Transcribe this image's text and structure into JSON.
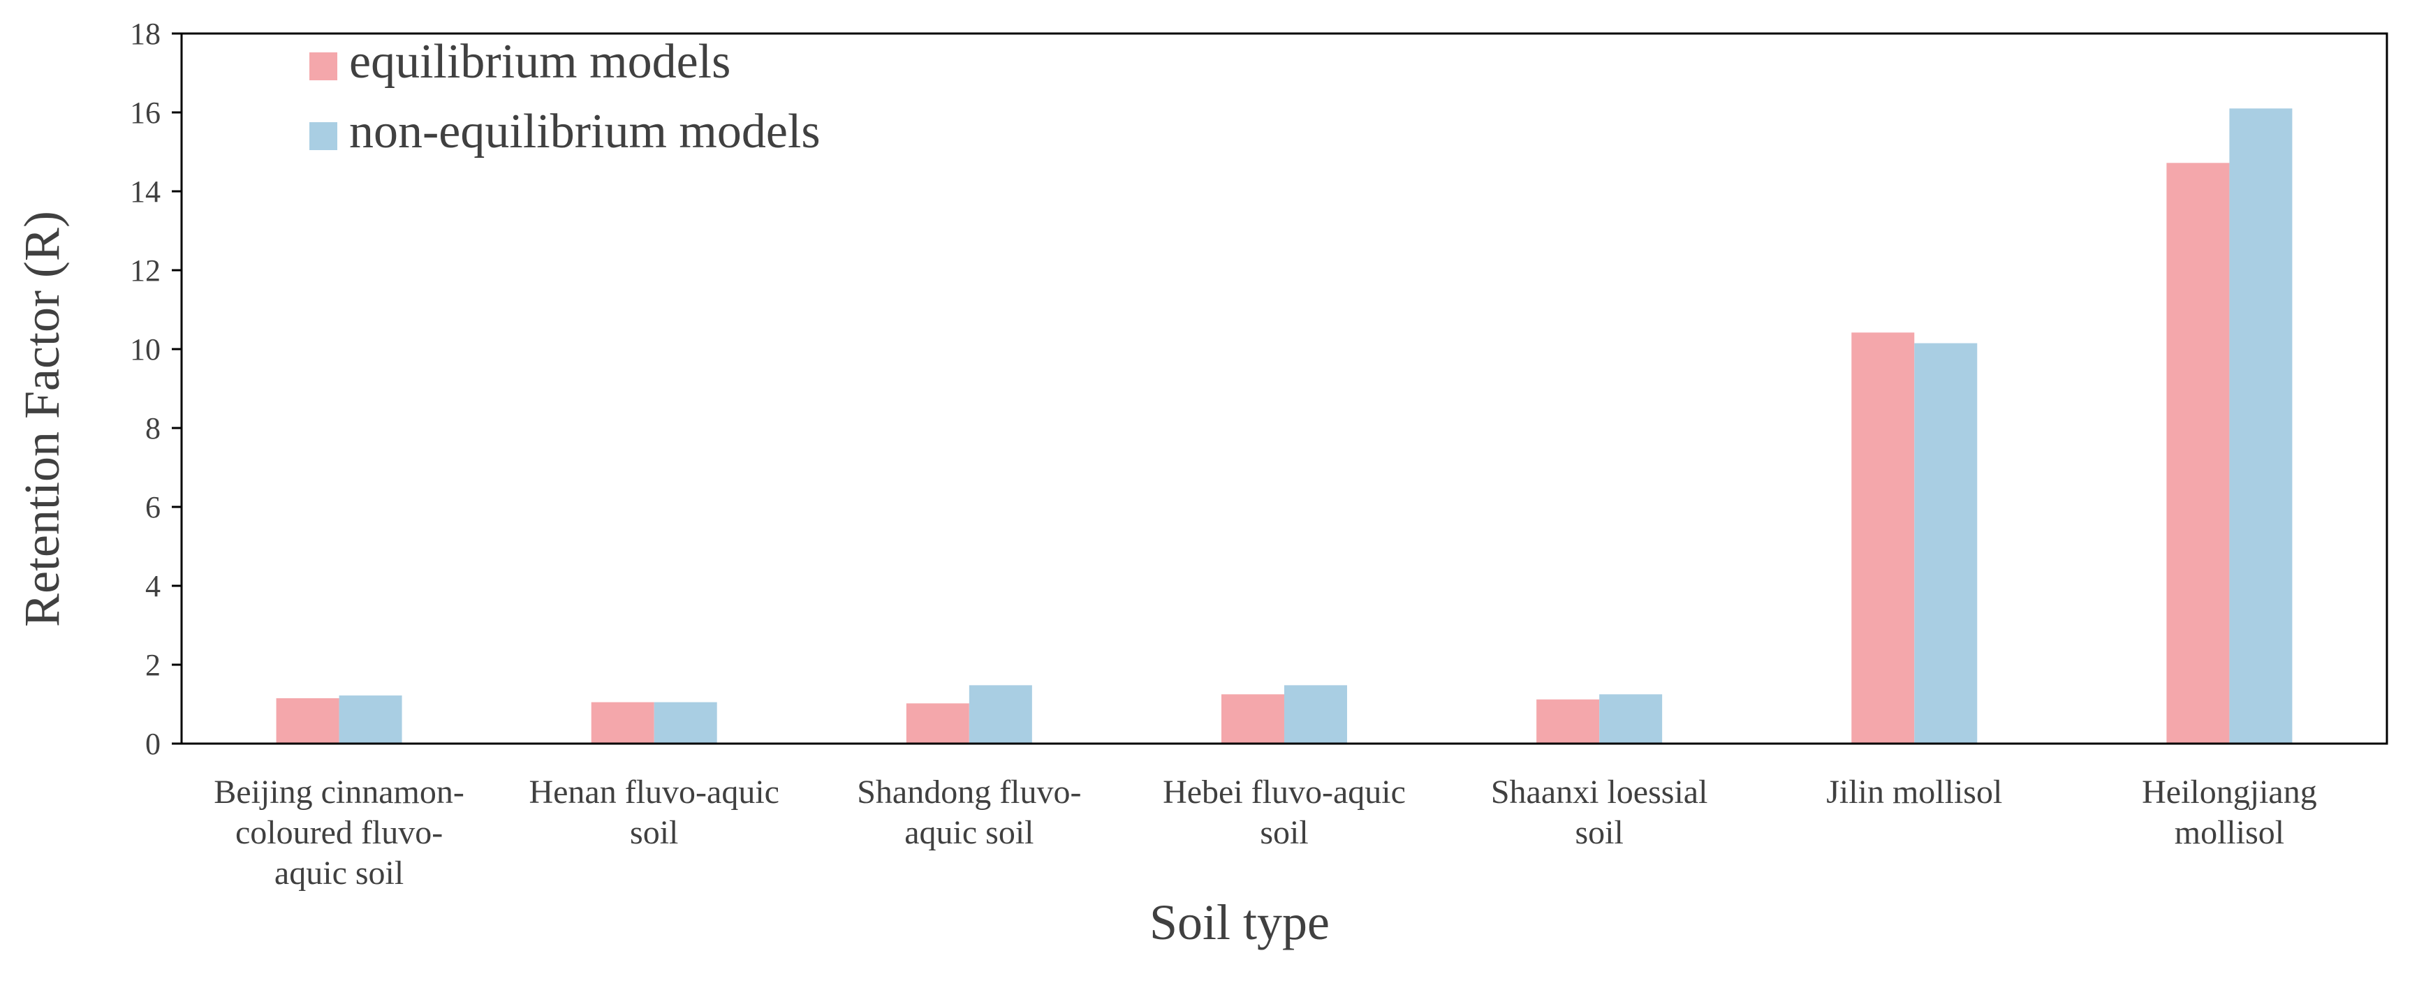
{
  "chart_data": {
    "type": "bar",
    "title": "",
    "xlabel": "Soil type",
    "ylabel": "Retention Factor (R)",
    "ylim": [
      0,
      18
    ],
    "yticks": [
      "0",
      "2",
      "4",
      "6",
      "8",
      "10",
      "12",
      "14",
      "16",
      "18"
    ],
    "grid": false,
    "legend_position": "top-left",
    "categories": [
      [
        "Beijing cinnamon-",
        "coloured fluvo-",
        "aquic soil"
      ],
      [
        "Henan fluvo-aquic",
        "soil"
      ],
      [
        "Shandong fluvo-",
        "aquic soil"
      ],
      [
        "Hebei fluvo-aquic",
        "soil"
      ],
      [
        "Shaanxi loessial",
        "soil"
      ],
      [
        "Jilin mollisol"
      ],
      [
        "Heilongjiang",
        "mollisol"
      ]
    ],
    "series": [
      {
        "name": "equilibrium models",
        "color": "#F4A7AB",
        "values": [
          1.15,
          1.05,
          1.02,
          1.25,
          1.12,
          10.42,
          14.72
        ]
      },
      {
        "name": "non-equilibrium models",
        "color": "#A9CEE3",
        "values": [
          1.22,
          1.05,
          1.48,
          1.48,
          1.25,
          10.15,
          16.1
        ]
      }
    ]
  }
}
